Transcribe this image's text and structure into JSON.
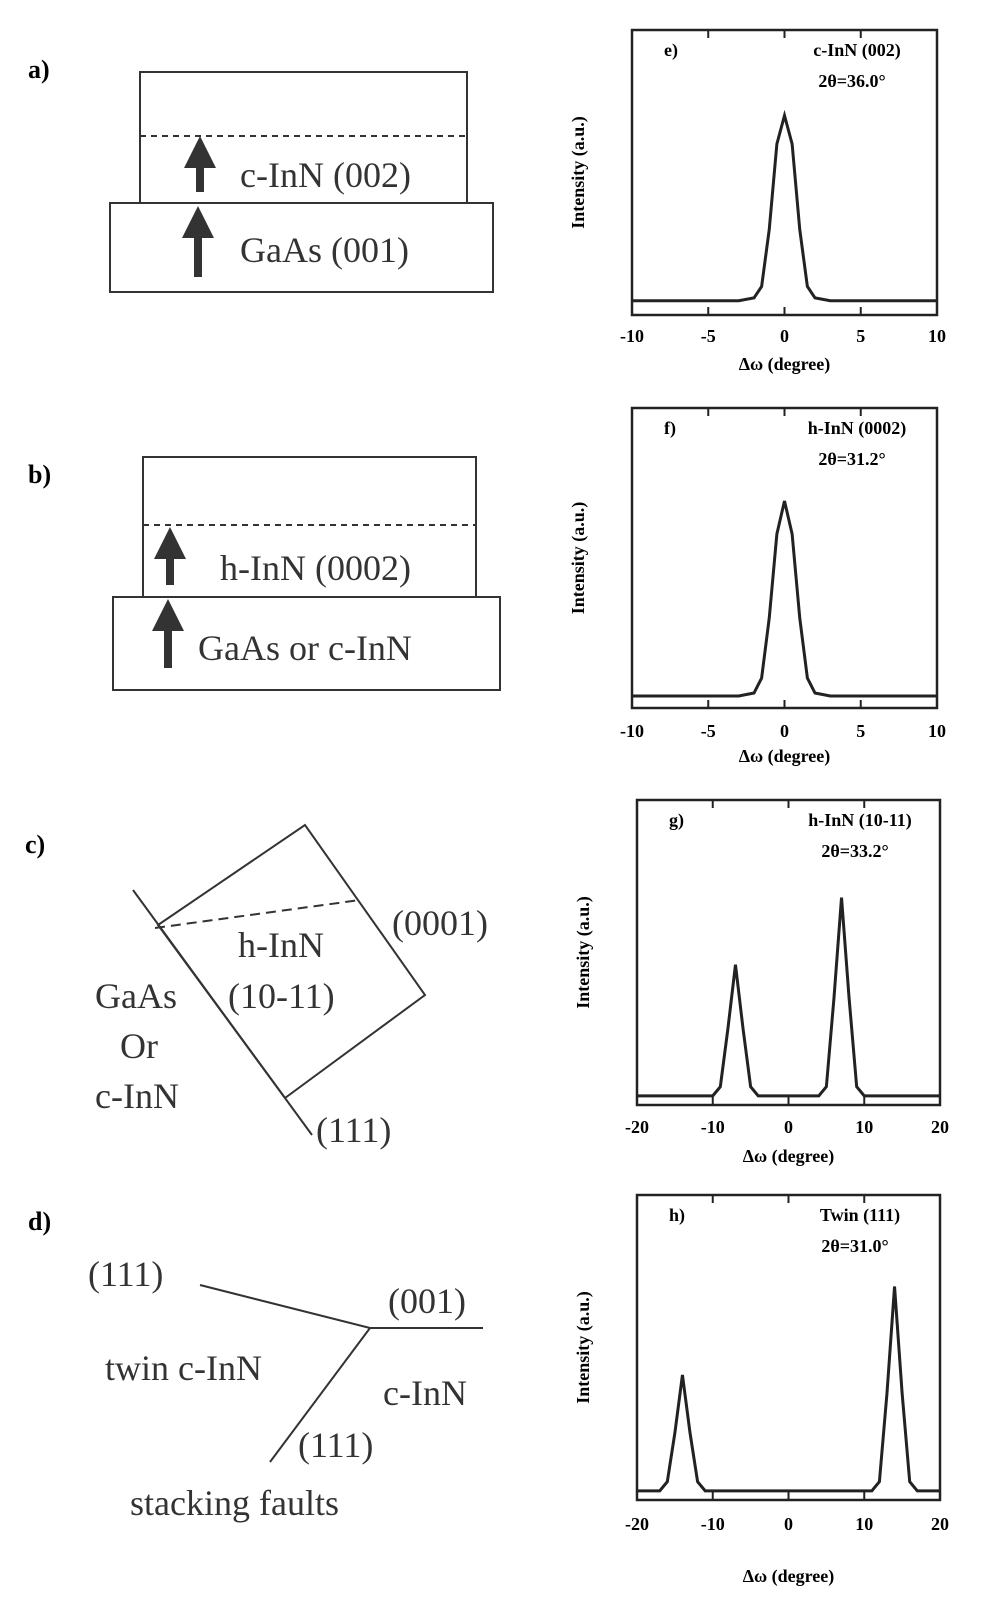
{
  "chart_data": [
    {
      "type": "line",
      "panel_label": "e)",
      "annotations": [
        "c-InN (002)",
        "2θ=36.0°"
      ],
      "x_label": "Δω (degree)",
      "y_label": "Intensity (a.u.)",
      "xlim": [
        -10,
        10
      ],
      "xticks": [
        -10,
        -5,
        0,
        5,
        10
      ],
      "ylim": [
        0,
        1
      ],
      "color": "#222222",
      "x": [
        -10,
        -3,
        -2,
        -1.5,
        -1,
        -0.5,
        0,
        0.5,
        1,
        1.5,
        2,
        3,
        10
      ],
      "values": [
        0.05,
        0.05,
        0.06,
        0.1,
        0.3,
        0.6,
        0.7,
        0.6,
        0.3,
        0.1,
        0.06,
        0.05,
        0.05
      ]
    },
    {
      "type": "line",
      "panel_label": "f)",
      "annotations": [
        "h-InN (0002)",
        "2θ=31.2°"
      ],
      "x_label": "Δω (degree)",
      "y_label": "Intensity (a.u.)",
      "xlim": [
        -10,
        10
      ],
      "xticks": [
        -10,
        -5,
        0,
        5,
        10
      ],
      "ylim": [
        0,
        1
      ],
      "color": "#222222",
      "x": [
        -10,
        -3,
        -2,
        -1.5,
        -1,
        -0.5,
        0,
        0.5,
        1,
        1.5,
        2,
        3,
        10
      ],
      "values": [
        0.04,
        0.04,
        0.05,
        0.1,
        0.3,
        0.58,
        0.69,
        0.58,
        0.3,
        0.1,
        0.05,
        0.04,
        0.04
      ]
    },
    {
      "type": "line",
      "panel_label": "g)",
      "annotations": [
        "h-InN (10-11)",
        "2θ=33.2°"
      ],
      "x_label": "Δω (degree)",
      "y_label": "Intensity (a.u.)",
      "xlim": [
        -20,
        20
      ],
      "xticks": [
        -20,
        -10,
        0,
        10,
        20
      ],
      "ylim": [
        0,
        1
      ],
      "color": "#222222",
      "x": [
        -20,
        -10,
        -9,
        -8,
        -7,
        -6,
        -5,
        -4,
        4,
        5,
        6,
        7,
        8,
        9,
        10,
        20
      ],
      "values": [
        0.03,
        0.03,
        0.06,
        0.25,
        0.46,
        0.25,
        0.06,
        0.03,
        0.03,
        0.06,
        0.35,
        0.68,
        0.35,
        0.06,
        0.03,
        0.03
      ]
    },
    {
      "type": "line",
      "panel_label": "h)",
      "annotations": [
        "Twin (111)",
        "2θ=31.0°"
      ],
      "x_label": "Δω (degree)",
      "y_label": "Intensity (a.u.)",
      "xlim": [
        -20,
        20
      ],
      "xticks": [
        -20,
        -10,
        0,
        10,
        20
      ],
      "ylim": [
        0,
        1
      ],
      "color": "#222222",
      "x": [
        -20,
        -17,
        -16,
        -15,
        -14,
        -13,
        -12,
        -11,
        11,
        12,
        13,
        14,
        15,
        16,
        17,
        20
      ],
      "values": [
        0.03,
        0.03,
        0.06,
        0.22,
        0.41,
        0.22,
        0.06,
        0.03,
        0.03,
        0.06,
        0.35,
        0.7,
        0.35,
        0.06,
        0.03,
        0.03
      ]
    }
  ],
  "diagrams": [
    {
      "label": "a)",
      "texts": [
        "c-InN (002)",
        "GaAs (001)"
      ]
    },
    {
      "label": "b)",
      "texts": [
        "h-InN (0002)",
        "GaAs or c-InN"
      ]
    },
    {
      "label": "c)",
      "texts": [
        "(0001)",
        "h-InN",
        "(10-11)",
        "GaAs",
        "Or",
        "c-InN",
        "(111)"
      ]
    },
    {
      "label": "d)",
      "texts": [
        "(111)",
        "(001)",
        "twin c-InN",
        "c-InN",
        "(111)",
        "stacking faults"
      ]
    }
  ]
}
